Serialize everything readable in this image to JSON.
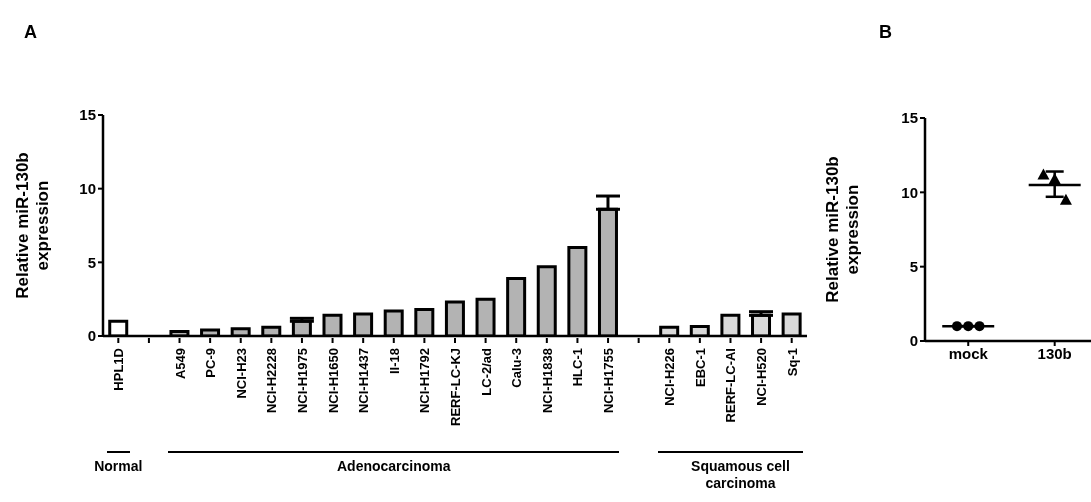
{
  "chart_data": [
    {
      "type": "bar",
      "title": "A",
      "ylabel": "Relative miR-130b expression",
      "categories": [
        "HPL1D",
        null,
        "A549",
        "PC-9",
        "NCI-H23",
        "NCI-H2228",
        "NCI-H1975",
        "NCI-H1650",
        "NCI-H1437",
        "II-18",
        "NCI-H1792",
        "RERF-LC-KJ",
        "LC-2/ad",
        "Calu-3",
        "NCI-H1838",
        "HLC-1",
        "NCI-H1755",
        null,
        "NCI-H226",
        "EBC-1",
        "RERF-LC-AI",
        "NCI-H520",
        "Sq-1"
      ],
      "values": [
        1.0,
        null,
        0.3,
        0.4,
        0.5,
        0.6,
        1.0,
        1.4,
        1.5,
        1.7,
        1.8,
        2.3,
        2.5,
        3.9,
        4.7,
        6.0,
        8.6,
        null,
        0.6,
        0.65,
        1.4,
        1.4,
        1.5
      ],
      "errors": [
        null,
        null,
        null,
        null,
        null,
        null,
        [
          1.0,
          1.2
        ],
        null,
        null,
        null,
        null,
        null,
        null,
        null,
        null,
        null,
        [
          8.6,
          9.5
        ],
        null,
        null,
        null,
        null,
        [
          1.4,
          1.65
        ],
        null
      ],
      "colors": [
        "#ffffff",
        null,
        "#b3b3b3",
        "#b3b3b3",
        "#b3b3b3",
        "#b3b3b3",
        "#b3b3b3",
        "#b3b3b3",
        "#b3b3b3",
        "#b3b3b3",
        "#b3b3b3",
        "#b3b3b3",
        "#b3b3b3",
        "#b3b3b3",
        "#b3b3b3",
        "#b3b3b3",
        "#b3b3b3",
        null,
        "#d9d9d9",
        "#d9d9d9",
        "#d9d9d9",
        "#d9d9d9",
        "#d9d9d9"
      ],
      "ylim": [
        0,
        15
      ],
      "yticks": [
        0,
        5,
        10,
        15
      ],
      "annotations": [
        "Normal",
        "Adenocarcinoma",
        "Squamous cell carcinoma"
      ]
    },
    {
      "type": "scatter",
      "title": "B",
      "ylabel": "Relative miR-130b expression",
      "categories": [
        "mock",
        "130b"
      ],
      "ylim": [
        0,
        15
      ],
      "yticks": [
        0,
        5,
        10,
        15
      ],
      "series": [
        {
          "type": "scatter",
          "marker": "circle",
          "color": "#000000",
          "x": [
            "mock",
            "mock",
            "mock"
          ],
          "values": [
            1.0,
            1.0,
            1.0
          ]
        },
        {
          "type": "scatter",
          "marker": "triangle",
          "color": "#000000",
          "x": [
            "130b",
            "130b",
            "130b"
          ],
          "values": [
            11.2,
            10.9,
            9.5
          ]
        },
        {
          "type": "box",
          "color": "#000000",
          "boxes": [
            {
              "low": 1.0,
              "q1": 1.0,
              "median": 1.0,
              "q3": 1.0,
              "high": 1.0
            },
            {
              "low": 9.7,
              "q1": 10.5,
              "median": 10.5,
              "q3": 10.5,
              "high": 11.4
            }
          ]
        }
      ]
    }
  ]
}
